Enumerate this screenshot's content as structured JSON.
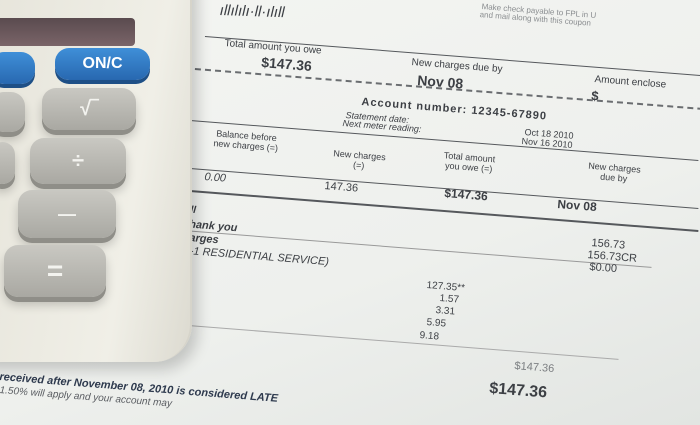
{
  "bill": {
    "barcode": "ıllılılı·ll·ılıll",
    "instructions": [
      "Make check payable to FPL in U",
      "and mail along with this coupon"
    ],
    "coupon": {
      "total_label": "Total amount you owe",
      "total_value": "$147.36",
      "due_label": "New charges due by",
      "due_value": "Nov 08",
      "enclosed_label": "Amount enclose",
      "enclosed_value": "$"
    },
    "account_number": "Account number: 12345-67890",
    "statement_date_label": "Statement date:",
    "statement_date": "Oct 18 2010",
    "meter_label": "Next meter reading:",
    "meter_date": "Nov 16 2010",
    "summary_headers": [
      "Balance before new charges (=)",
      "New charges (=)",
      "Total amount you owe (=)",
      "New charges due by"
    ],
    "summary_values": [
      "0.00",
      "147.36",
      "$147.36",
      "Nov 08"
    ],
    "lines": [
      "bill",
      "Thank you",
      "charges",
      "RS-1 RESIDENTIAL SERVICE)"
    ],
    "right_amounts": [
      "156.73",
      "156.73CR",
      "$0.00"
    ],
    "charges": [
      "127.35**",
      "1.57",
      "3.31",
      "5.95",
      "9.18"
    ],
    "owe_label": "owe",
    "subtotal": "$147.36",
    "total": "$147.36",
    "late_notice": [
      "received after November 08, 2010 is considered LATE",
      "1.50% will apply and your account may"
    ]
  },
  "calculator": {
    "keys": {
      "on_c": "ON/C",
      "sqrt": "√‾",
      "divide": "÷",
      "minus": "—",
      "equals": "="
    }
  },
  "colors": {
    "paper": "#f0f1ee",
    "calculator": "#ecebe2",
    "blue_key": "#2f7fc8",
    "gray_key": "#b8b7b1"
  }
}
